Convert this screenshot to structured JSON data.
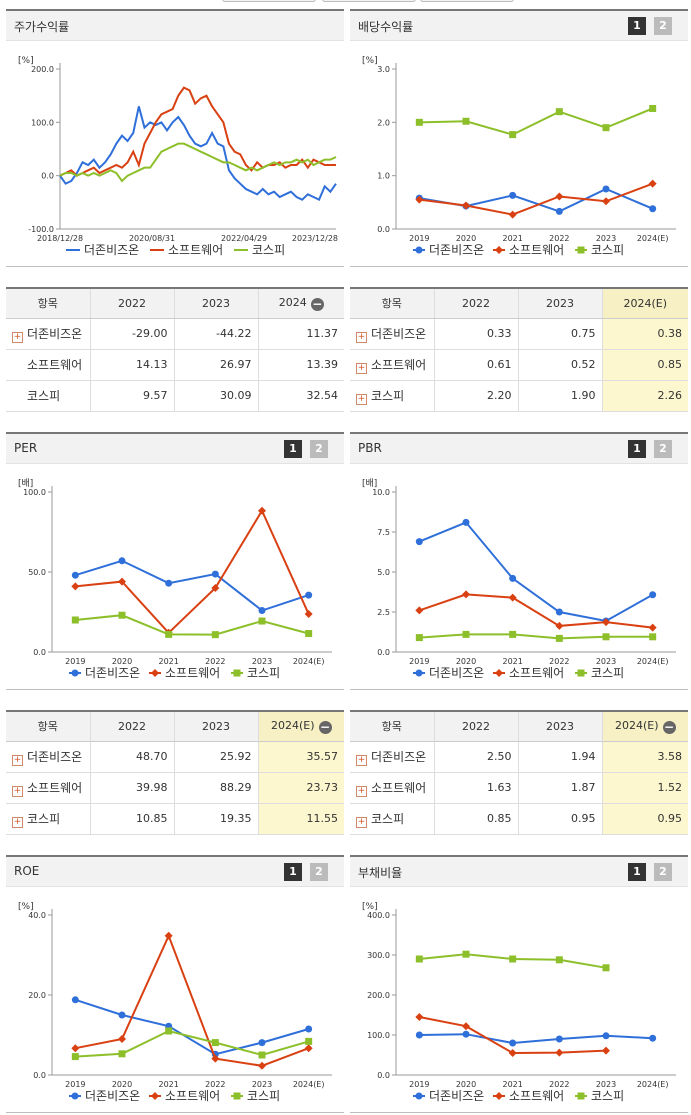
{
  "legend": [
    "더존비즈온",
    "소프트웨어",
    "코스피"
  ],
  "colors": {
    "s0": "#2f6fd9",
    "s1": "#d94012",
    "s2": "#8cbf2a"
  },
  "pager": [
    "1",
    "2"
  ],
  "charts": {
    "stock": {
      "title": "주가수익률",
      "unit": "[%]",
      "yticks": [
        "200.0",
        "100.0",
        "0.0",
        "-100.0"
      ],
      "xticks": [
        "2018/12/28",
        "2020/08/31",
        "2022/04/29",
        "2023/12/28"
      ]
    },
    "dividend": {
      "title": "배당수익률",
      "unit": "[%]",
      "yticks": [
        "3.0",
        "2.0",
        "1.0",
        "0.0"
      ],
      "xticks": [
        "2019",
        "2020",
        "2021",
        "2022",
        "2023",
        "2024(E)"
      ]
    },
    "per": {
      "title": "PER",
      "unit": "[배]",
      "yticks": [
        "100.0",
        "50.0",
        "0.0"
      ],
      "xticks": [
        "2019",
        "2020",
        "2021",
        "2022",
        "2023",
        "2024(E)"
      ]
    },
    "pbr": {
      "title": "PBR",
      "unit": "[배]",
      "yticks": [
        "10.0",
        "7.5",
        "5.0",
        "2.5",
        "0.0"
      ],
      "xticks": [
        "2019",
        "2020",
        "2021",
        "2022",
        "2023",
        "2024(E)"
      ]
    },
    "roe": {
      "title": "ROE",
      "unit": "[%]",
      "yticks": [
        "40.0",
        "20.0",
        "0.0"
      ],
      "xticks": [
        "2019",
        "2020",
        "2021",
        "2022",
        "2023",
        "2024(E)"
      ]
    },
    "debt": {
      "title": "부채비율",
      "unit": "[%]",
      "yticks": [
        "400.0",
        "300.0",
        "200.0",
        "100.0",
        "0.0"
      ],
      "xticks": [
        "2019",
        "2020",
        "2021",
        "2022",
        "2023",
        "2024(E)"
      ]
    }
  },
  "tables": {
    "stock": {
      "headers": [
        "항목",
        "2022",
        "2023",
        "2024"
      ],
      "rows": [
        {
          "name": "더존비즈온",
          "v": [
            "-29.00",
            "-44.22",
            "11.37"
          ]
        },
        {
          "name": "소프트웨어",
          "v": [
            "14.13",
            "26.97",
            "13.39"
          ]
        },
        {
          "name": "코스피",
          "v": [
            "9.57",
            "30.09",
            "32.54"
          ]
        }
      ]
    },
    "dividend": {
      "headers": [
        "항목",
        "2022",
        "2023",
        "2024(E)"
      ],
      "rows": [
        {
          "name": "더존비즈온",
          "v": [
            "0.33",
            "0.75",
            "0.38"
          ]
        },
        {
          "name": "소프트웨어",
          "v": [
            "0.61",
            "0.52",
            "0.85"
          ]
        },
        {
          "name": "코스피",
          "v": [
            "2.20",
            "1.90",
            "2.26"
          ]
        }
      ]
    },
    "per": {
      "headers": [
        "항목",
        "2022",
        "2023",
        "2024(E)"
      ],
      "rows": [
        {
          "name": "더존비즈온",
          "v": [
            "48.70",
            "25.92",
            "35.57"
          ]
        },
        {
          "name": "소프트웨어",
          "v": [
            "39.98",
            "88.29",
            "23.73"
          ]
        },
        {
          "name": "코스피",
          "v": [
            "10.85",
            "19.35",
            "11.55"
          ]
        }
      ]
    },
    "pbr": {
      "headers": [
        "항목",
        "2022",
        "2023",
        "2024(E)"
      ],
      "rows": [
        {
          "name": "더존비즈온",
          "v": [
            "2.50",
            "1.94",
            "3.58"
          ]
        },
        {
          "name": "소프트웨어",
          "v": [
            "1.63",
            "1.87",
            "1.52"
          ]
        },
        {
          "name": "코스피",
          "v": [
            "0.85",
            "0.95",
            "0.95"
          ]
        }
      ]
    }
  },
  "chart_data": [
    {
      "type": "line",
      "id": "stock",
      "title": "주가수익률",
      "ylabel": "[%]",
      "ylim": [
        -100,
        200
      ],
      "x_range": [
        "2018/12/28",
        "2023/12/28"
      ],
      "series": [
        {
          "name": "더존비즈온",
          "values": [
            0,
            -15,
            -10,
            5,
            25,
            20,
            30,
            15,
            25,
            40,
            60,
            75,
            65,
            80,
            130,
            90,
            100,
            95,
            100,
            85,
            100,
            110,
            95,
            75,
            60,
            55,
            60,
            80,
            60,
            55,
            10,
            -5,
            -15,
            -25,
            -30,
            -35,
            -25,
            -35,
            -30,
            -40,
            -35,
            -30,
            -40,
            -45,
            -35,
            -40,
            -45,
            -20,
            -30,
            -15
          ]
        },
        {
          "name": "소프트웨어",
          "values": [
            0,
            5,
            10,
            0,
            5,
            10,
            15,
            5,
            10,
            15,
            20,
            15,
            25,
            45,
            20,
            60,
            80,
            100,
            115,
            120,
            125,
            150,
            165,
            160,
            135,
            145,
            150,
            130,
            115,
            100,
            60,
            45,
            40,
            20,
            10,
            25,
            15,
            20,
            20,
            25,
            15,
            20,
            20,
            30,
            15,
            30,
            25,
            20,
            20,
            20
          ]
        },
        {
          "name": "코스피",
          "values": [
            0,
            5,
            5,
            0,
            5,
            0,
            5,
            0,
            5,
            10,
            5,
            -10,
            0,
            5,
            10,
            15,
            15,
            30,
            45,
            50,
            55,
            60,
            60,
            55,
            50,
            45,
            40,
            35,
            30,
            25,
            25,
            20,
            15,
            10,
            15,
            10,
            15,
            20,
            25,
            20,
            25,
            25,
            30,
            25,
            30,
            20,
            25,
            30,
            30,
            35
          ]
        }
      ]
    },
    {
      "type": "line",
      "id": "dividend",
      "title": "배당수익률",
      "ylabel": "[%]",
      "ylim": [
        0,
        3
      ],
      "categories": [
        "2019",
        "2020",
        "2021",
        "2022",
        "2023",
        "2024(E)"
      ],
      "series": [
        {
          "name": "더존비즈온",
          "values": [
            0.58,
            0.43,
            0.63,
            0.33,
            0.75,
            0.38
          ]
        },
        {
          "name": "소프트웨어",
          "values": [
            0.55,
            0.44,
            0.27,
            0.61,
            0.52,
            0.85
          ]
        },
        {
          "name": "코스피",
          "values": [
            2.0,
            2.02,
            1.77,
            2.2,
            1.9,
            2.26
          ]
        }
      ]
    },
    {
      "type": "line",
      "id": "per",
      "title": "PER",
      "ylabel": "[배]",
      "ylim": [
        0,
        100
      ],
      "categories": [
        "2019",
        "2020",
        "2021",
        "2022",
        "2023",
        "2024(E)"
      ],
      "series": [
        {
          "name": "더존비즈온",
          "values": [
            48,
            57,
            43,
            48.7,
            25.92,
            35.57
          ]
        },
        {
          "name": "소프트웨어",
          "values": [
            41,
            44,
            12,
            39.98,
            88.29,
            23.73
          ]
        },
        {
          "name": "코스피",
          "values": [
            20,
            23,
            11,
            10.85,
            19.35,
            11.55
          ]
        }
      ]
    },
    {
      "type": "line",
      "id": "pbr",
      "title": "PBR",
      "ylabel": "[배]",
      "ylim": [
        0,
        10
      ],
      "categories": [
        "2019",
        "2020",
        "2021",
        "2022",
        "2023",
        "2024(E)"
      ],
      "series": [
        {
          "name": "더존비즈온",
          "values": [
            6.9,
            8.1,
            4.6,
            2.5,
            1.94,
            3.58
          ]
        },
        {
          "name": "소프트웨어",
          "values": [
            2.6,
            3.6,
            3.4,
            1.63,
            1.87,
            1.52
          ]
        },
        {
          "name": "코스피",
          "values": [
            0.9,
            1.1,
            1.1,
            0.85,
            0.95,
            0.95
          ]
        }
      ]
    },
    {
      "type": "line",
      "id": "roe",
      "title": "ROE",
      "ylabel": "[%]",
      "ylim": [
        0,
        40
      ],
      "categories": [
        "2019",
        "2020",
        "2021",
        "2022",
        "2023",
        "2024(E)"
      ],
      "series": [
        {
          "name": "더존비즈온",
          "values": [
            18.8,
            15.0,
            12.2,
            5.2,
            8.1,
            11.5
          ]
        },
        {
          "name": "소프트웨어",
          "values": [
            6.7,
            9.0,
            34.8,
            4.1,
            2.3,
            6.7
          ]
        },
        {
          "name": "코스피",
          "values": [
            4.6,
            5.3,
            11.0,
            8.1,
            5.0,
            8.4
          ]
        }
      ]
    },
    {
      "type": "line",
      "id": "debt",
      "title": "부채비율",
      "ylabel": "[%]",
      "ylim": [
        0,
        400
      ],
      "categories": [
        "2019",
        "2020",
        "2021",
        "2022",
        "2023",
        "2024(E)"
      ],
      "series": [
        {
          "name": "더존비즈온",
          "values": [
            100,
            102,
            80,
            90,
            98,
            92
          ]
        },
        {
          "name": "소프트웨어",
          "values": [
            145,
            122,
            55,
            56,
            61,
            null
          ]
        },
        {
          "name": "코스피",
          "values": [
            290,
            302,
            290,
            288,
            268,
            null
          ]
        }
      ]
    }
  ]
}
